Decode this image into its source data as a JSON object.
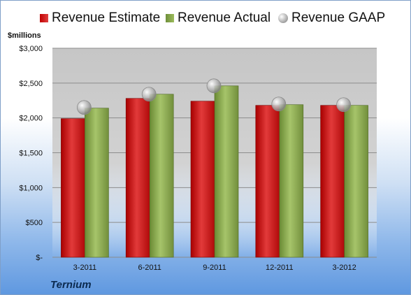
{
  "legend": {
    "estimate": "Revenue Estimate",
    "actual": "Revenue Actual",
    "gaap": "Revenue GAAP"
  },
  "unit_label": "$millions",
  "company": "Ternium",
  "colors": {
    "estimate": "#c81818",
    "actual": "#8aab4f",
    "gaap": "#b8b8b8"
  },
  "chart_data": {
    "type": "bar",
    "categories": [
      "3-2011",
      "6-2011",
      "9-2011",
      "12-2011",
      "3-2012"
    ],
    "series": [
      {
        "name": "Revenue Estimate",
        "values": [
          1990,
          2280,
          2240,
          2180,
          2180
        ]
      },
      {
        "name": "Revenue Actual",
        "values": [
          2140,
          2340,
          2460,
          2190,
          2180
        ]
      },
      {
        "name": "Revenue GAAP",
        "marker": "circle",
        "values": [
          2150,
          2340,
          2460,
          2200,
          2190
        ]
      }
    ],
    "yticks": [
      0,
      500,
      1000,
      1500,
      2000,
      2500,
      3000
    ],
    "ytick_labels": [
      "$-",
      "$500",
      "$1,000",
      "$1,500",
      "$2,000",
      "$2,500",
      "$3,000"
    ],
    "ylim": [
      0,
      3000
    ],
    "grid": true,
    "legend_position": "top"
  }
}
